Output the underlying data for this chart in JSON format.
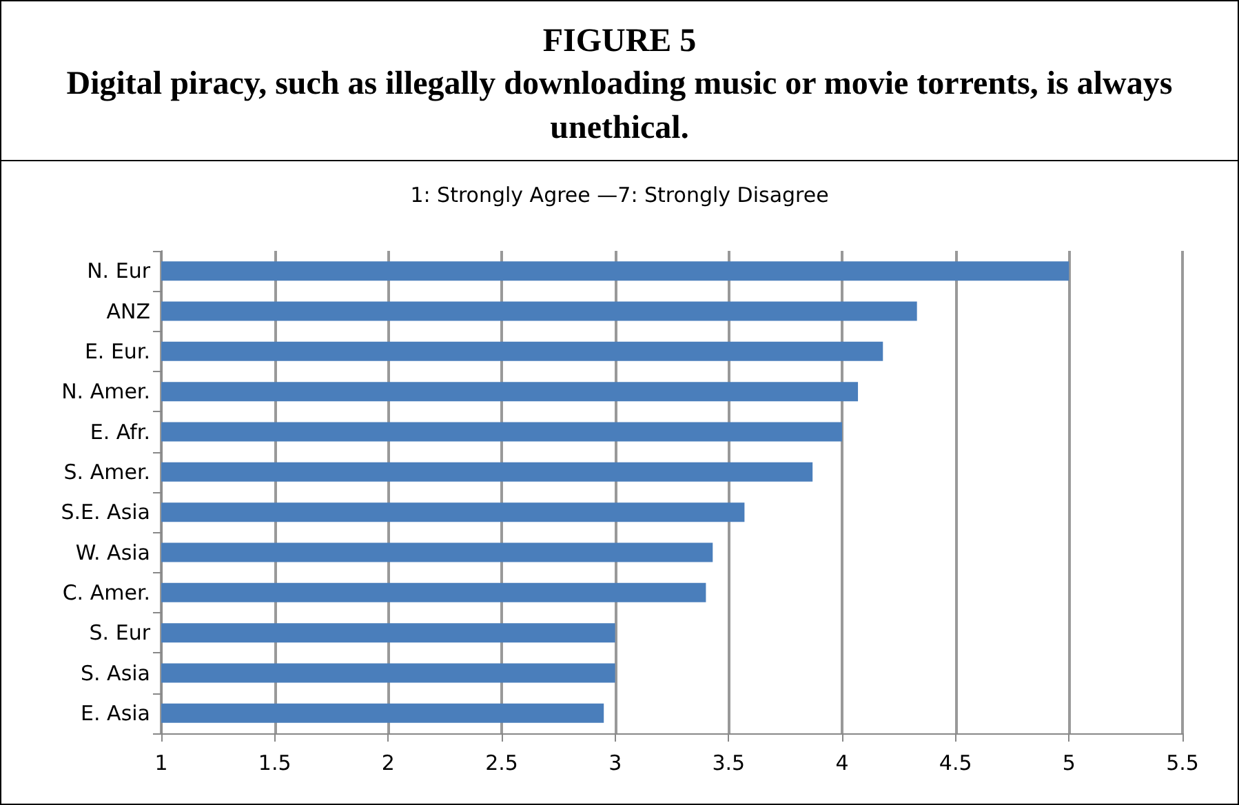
{
  "chart_data": {
    "type": "bar",
    "orientation": "horizontal",
    "title": "FIGURE 5",
    "subtitle": "Digital piracy, such as illegally downloading music or movie torrents, is always unethical.",
    "annotations": [
      "1: Strongly Agree —7: Strongly Disagree"
    ],
    "categories": [
      "N. Eur",
      "ANZ",
      "E. Eur.",
      "N. Amer.",
      "E. Afr.",
      "S. Amer.",
      "S.E. Asia",
      "W. Asia",
      "C. Amer.",
      "S. Eur",
      "S. Asia",
      "E. Asia"
    ],
    "values": [
      5.0,
      4.33,
      4.18,
      4.07,
      4.0,
      3.87,
      3.57,
      3.43,
      3.4,
      3.0,
      3.0,
      2.95
    ],
    "color": "#4a7ebb",
    "xlim": [
      1,
      5.5
    ],
    "xticks": [
      1,
      1.5,
      2,
      2.5,
      3,
      3.5,
      4,
      4.5,
      5,
      5.5
    ],
    "grid": "x"
  }
}
